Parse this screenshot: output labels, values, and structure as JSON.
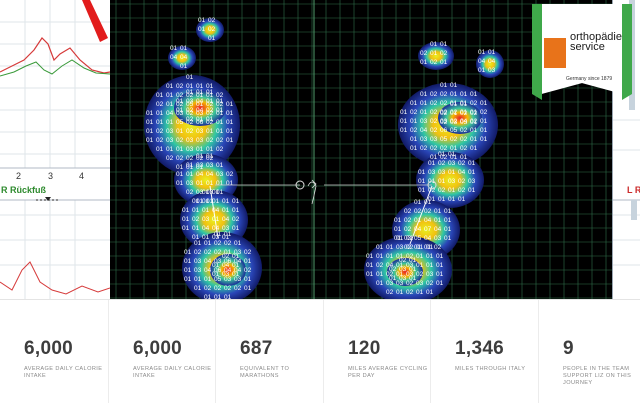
{
  "left_panel": {
    "label": "R Rückfuß",
    "ticks": [
      "2",
      "3",
      "4"
    ]
  },
  "right_panel": {
    "label": "L Rü"
  },
  "logo": {
    "line1": "orthopädie",
    "line2": "service",
    "tagline": "Germany since 1879",
    "brand_color": "#e8731a"
  },
  "stats": [
    {
      "value": "6,000",
      "label": "AVERAGE DAILY CALORIE INTAKE"
    },
    {
      "value": "6,000",
      "label": "AVERAGE DAILY CALORIE INTAKE"
    },
    {
      "value": "687",
      "label": "EQUIVALENT TO MARATHONS"
    },
    {
      "value": "120",
      "label": "MILES AVERAGE CYCLING PER DAY"
    },
    {
      "value": "1,346",
      "label": "MILES THROUGH ITALY"
    },
    {
      "value": "9",
      "label": "PEOPLE IN THE TEAM SUPPORT LIZ ON THIS JOURNEY"
    }
  ]
}
